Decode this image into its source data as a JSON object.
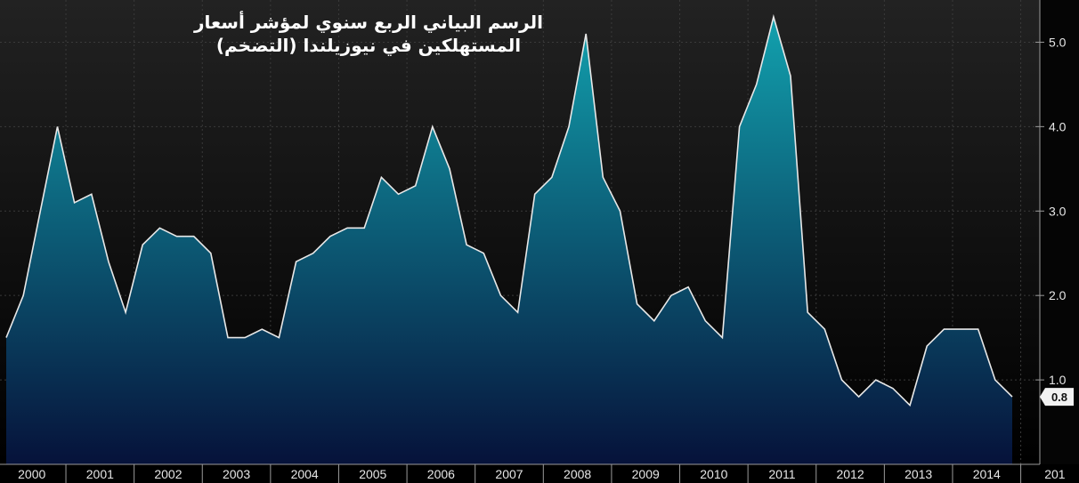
{
  "chart_data": {
    "type": "area",
    "title": "الرسم البياني الربع سنوي لمؤشر أسعار المستهلكين في نيوزيلندا (التضخم)",
    "title_lines": [
      "الرسم البياني الربع سنوي لمؤشر أسعار",
      "المستهلكين في نيوزيلندا (التضخم)"
    ],
    "xlabel": "",
    "ylabel": "",
    "ylim": [
      0,
      5.5
    ],
    "yticks": [
      1.0,
      2.0,
      3.0,
      4.0,
      5.0
    ],
    "ytick_labels": [
      "1.0",
      "2.0",
      "3.0",
      "4.0",
      "5.0"
    ],
    "x_years": [
      "2000",
      "2001",
      "2002",
      "2003",
      "2004",
      "2005",
      "2006",
      "2007",
      "2008",
      "2009",
      "2010",
      "2011",
      "2012",
      "2013",
      "2014",
      "201"
    ],
    "x": [
      "2000Q1",
      "2000Q2",
      "2000Q3",
      "2000Q4",
      "2001Q1",
      "2001Q2",
      "2001Q3",
      "2001Q4",
      "2002Q1",
      "2002Q2",
      "2002Q3",
      "2002Q4",
      "2003Q1",
      "2003Q2",
      "2003Q3",
      "2003Q4",
      "2004Q1",
      "2004Q2",
      "2004Q3",
      "2004Q4",
      "2005Q1",
      "2005Q2",
      "2005Q3",
      "2005Q4",
      "2006Q1",
      "2006Q2",
      "2006Q3",
      "2006Q4",
      "2007Q1",
      "2007Q2",
      "2007Q3",
      "2007Q4",
      "2008Q1",
      "2008Q2",
      "2008Q3",
      "2008Q4",
      "2009Q1",
      "2009Q2",
      "2009Q3",
      "2009Q4",
      "2010Q1",
      "2010Q2",
      "2010Q3",
      "2010Q4",
      "2011Q1",
      "2011Q2",
      "2011Q3",
      "2011Q4",
      "2012Q1",
      "2012Q2",
      "2012Q3",
      "2012Q4",
      "2013Q1",
      "2013Q2",
      "2013Q3",
      "2013Q4",
      "2014Q1",
      "2014Q2",
      "2014Q3",
      "2014Q4"
    ],
    "values": [
      1.5,
      2.0,
      3.0,
      4.0,
      3.1,
      3.2,
      2.4,
      1.8,
      2.6,
      2.8,
      2.7,
      2.7,
      2.5,
      1.5,
      1.5,
      1.6,
      1.5,
      2.4,
      2.5,
      2.7,
      2.8,
      2.8,
      3.4,
      3.2,
      3.3,
      4.0,
      3.5,
      2.6,
      2.5,
      2.0,
      1.8,
      3.2,
      3.4,
      4.0,
      5.1,
      3.4,
      3.0,
      1.9,
      1.7,
      2.0,
      2.1,
      1.7,
      1.5,
      4.0,
      4.5,
      5.3,
      4.6,
      1.8,
      1.6,
      1.0,
      0.8,
      1.0,
      0.9,
      0.7,
      1.4,
      1.6,
      1.6,
      1.6,
      1.0,
      0.8
    ],
    "last_value_label": "0.8",
    "grid": true,
    "colors": {
      "line": "#e8e8e8",
      "fill_top": "#12a1ae",
      "fill_bottom": "#06123a",
      "background_top": "#222222",
      "background_bottom": "#000000",
      "grid": "#3a3a3a",
      "axis": "#9a9a9a",
      "badge_bg": "#f2f2f2"
    }
  }
}
